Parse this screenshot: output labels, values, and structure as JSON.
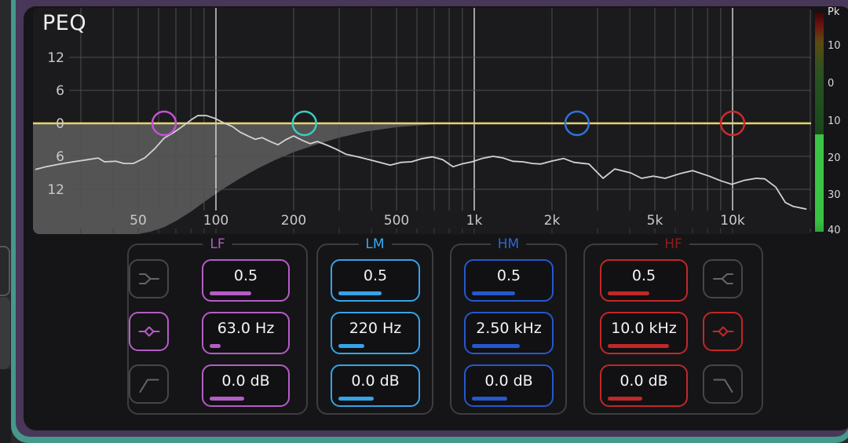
{
  "app": {
    "title": "PEQ"
  },
  "graph": {
    "title": "PEQ",
    "type": "line",
    "x_axis_labels": [
      {
        "text": "50",
        "freq": 50
      },
      {
        "text": "100",
        "freq": 100
      },
      {
        "text": "200",
        "freq": 200
      },
      {
        "text": "500",
        "freq": 500
      },
      {
        "text": "1k",
        "freq": 1000
      },
      {
        "text": "2k",
        "freq": 2000
      },
      {
        "text": "5k",
        "freq": 5000
      },
      {
        "text": "10k",
        "freq": 10000
      }
    ],
    "y_axis_labels": [
      {
        "text": "12",
        "db": 12
      },
      {
        "text": "6",
        "db": 6
      },
      {
        "text": "0",
        "db": 0
      },
      {
        "text": "6",
        "db": -6
      },
      {
        "text": "12",
        "db": -12
      }
    ],
    "freq_gridlines": [
      30,
      40,
      50,
      60,
      70,
      80,
      90,
      100,
      200,
      300,
      400,
      500,
      600,
      700,
      800,
      900,
      1000,
      2000,
      3000,
      4000,
      5000,
      6000,
      7000,
      8000,
      9000,
      10000,
      20000
    ],
    "major_gridlines": [
      100,
      1000,
      10000
    ],
    "freq_range": [
      20,
      20000
    ],
    "db_range": [
      -20,
      21
    ],
    "zero_line_db": 0,
    "zero_line_color": "#e5d469",
    "rta_trace_color": "#d2d2d2",
    "lowcut_fill_color": "rgba(255,255,255,0.25)",
    "rta_trace": [
      [
        20,
        -8.4
      ],
      [
        22,
        -7.9
      ],
      [
        25,
        -7.4
      ],
      [
        28,
        -7.0
      ],
      [
        32,
        -6.6
      ],
      [
        35,
        -6.3
      ],
      [
        37,
        -7.0
      ],
      [
        41,
        -6.9
      ],
      [
        44,
        -7.3
      ],
      [
        48,
        -7.3
      ],
      [
        53,
        -6.3
      ],
      [
        58,
        -4.6
      ],
      [
        63,
        -2.7
      ],
      [
        69,
        -1.6
      ],
      [
        74,
        -0.6
      ],
      [
        80,
        0.6
      ],
      [
        85,
        1.4
      ],
      [
        92,
        1.4
      ],
      [
        99,
        0.9
      ],
      [
        107,
        0.1
      ],
      [
        116,
        -0.6
      ],
      [
        124,
        -1.6
      ],
      [
        133,
        -2.3
      ],
      [
        142,
        -2.9
      ],
      [
        151,
        -2.6
      ],
      [
        162,
        -3.3
      ],
      [
        174,
        -3.9
      ],
      [
        186,
        -3.0
      ],
      [
        200,
        -2.3
      ],
      [
        216,
        -3.1
      ],
      [
        232,
        -3.7
      ],
      [
        247,
        -3.3
      ],
      [
        270,
        -4.0
      ],
      [
        292,
        -4.7
      ],
      [
        318,
        -5.6
      ],
      [
        355,
        -6.1
      ],
      [
        392,
        -6.6
      ],
      [
        431,
        -7.1
      ],
      [
        473,
        -7.6
      ],
      [
        521,
        -7.1
      ],
      [
        571,
        -7.0
      ],
      [
        630,
        -6.4
      ],
      [
        690,
        -6.1
      ],
      [
        755,
        -6.6
      ],
      [
        828,
        -7.9
      ],
      [
        893,
        -7.4
      ],
      [
        980,
        -7.0
      ],
      [
        1071,
        -6.4
      ],
      [
        1183,
        -6.0
      ],
      [
        1294,
        -6.3
      ],
      [
        1409,
        -6.9
      ],
      [
        1542,
        -7.0
      ],
      [
        1678,
        -7.3
      ],
      [
        1812,
        -7.4
      ],
      [
        1986,
        -6.9
      ],
      [
        2221,
        -6.4
      ],
      [
        2432,
        -7.1
      ],
      [
        2779,
        -7.4
      ],
      [
        3154,
        -10.0
      ],
      [
        3501,
        -8.3
      ],
      [
        4027,
        -9.0
      ],
      [
        4443,
        -10.0
      ],
      [
        4932,
        -9.6
      ],
      [
        5481,
        -10.0
      ],
      [
        6310,
        -9.1
      ],
      [
        7000,
        -8.6
      ],
      [
        8110,
        -9.6
      ],
      [
        8940,
        -10.4
      ],
      [
        9936,
        -11.1
      ],
      [
        11041,
        -10.4
      ],
      [
        12335,
        -10.0
      ],
      [
        13326,
        -10.1
      ],
      [
        14696,
        -11.6
      ],
      [
        16001,
        -14.4
      ],
      [
        17146,
        -15.1
      ],
      [
        19322,
        -15.6
      ]
    ],
    "lowcut_curve": [
      [
        700,
        -0.15
      ],
      [
        500,
        -0.7
      ],
      [
        380,
        -1.5
      ],
      [
        300,
        -2.6
      ],
      [
        243,
        -3.9
      ],
      [
        201,
        -5.2
      ],
      [
        169,
        -6.7
      ],
      [
        144,
        -8.3
      ],
      [
        123,
        -10.1
      ],
      [
        106,
        -12.0
      ],
      [
        92,
        -14.0
      ],
      [
        81,
        -15.9
      ],
      [
        71,
        -17.6
      ],
      [
        63,
        -18.9
      ],
      [
        56,
        -19.7
      ],
      [
        50,
        -20.5
      ]
    ]
  },
  "meter": {
    "title": "Pk",
    "scale_labels": [
      "10",
      "0",
      "10",
      "20",
      "30",
      "40"
    ],
    "bright_green": "#3cc545",
    "level_db": -17
  },
  "bands": [
    {
      "id": "lf",
      "label": "LF",
      "accent": "#b55cc6",
      "label_color": "#b05cc2",
      "marker_color": "#c352d4",
      "marker_freq": 63,
      "marker_db": 0,
      "q": "0.5",
      "q_pct": 58,
      "freq": "63.0 Hz",
      "freq_pct": 15,
      "gain": "0.0 dB",
      "gain_pct": 48,
      "icons_side": "left",
      "filter_icons": [
        {
          "name": "low-shelf-icon",
          "active": false
        },
        {
          "name": "bell-icon",
          "active": true
        },
        {
          "name": "high-pass-icon",
          "active": false
        }
      ]
    },
    {
      "id": "lm",
      "label": "LM",
      "accent": "#36a3e9",
      "label_color": "#3aa7ee",
      "marker_color": "#3accc2",
      "marker_freq": 220,
      "marker_db": 0,
      "q": "0.5",
      "q_pct": 58,
      "freq": "220 Hz",
      "freq_pct": 35,
      "gain": "0.0 dB",
      "gain_pct": 48,
      "icons_side": "none",
      "filter_icons": []
    },
    {
      "id": "hm",
      "label": "HM",
      "accent": "#2458ce",
      "label_color": "#2d66d4",
      "marker_color": "#3071d8",
      "marker_freq": 2500,
      "marker_db": 0,
      "q": "0.5",
      "q_pct": 58,
      "freq": "2.50 kHz",
      "freq_pct": 65,
      "gain": "0.0 dB",
      "gain_pct": 48,
      "icons_side": "none",
      "filter_icons": []
    },
    {
      "id": "hf",
      "label": "HF",
      "accent": "#c22727",
      "label_color": "#8f1d1d",
      "marker_color": "#cf2a2a",
      "marker_freq": 10000,
      "marker_db": 0,
      "q": "0.5",
      "q_pct": 58,
      "freq": "10.0 kHz",
      "freq_pct": 85,
      "gain": "0.0 dB",
      "gain_pct": 48,
      "icons_side": "right",
      "filter_icons": [
        {
          "name": "high-shelf-icon",
          "active": false
        },
        {
          "name": "bell-icon",
          "active": true
        },
        {
          "name": "low-pass-icon",
          "active": false
        }
      ]
    }
  ]
}
